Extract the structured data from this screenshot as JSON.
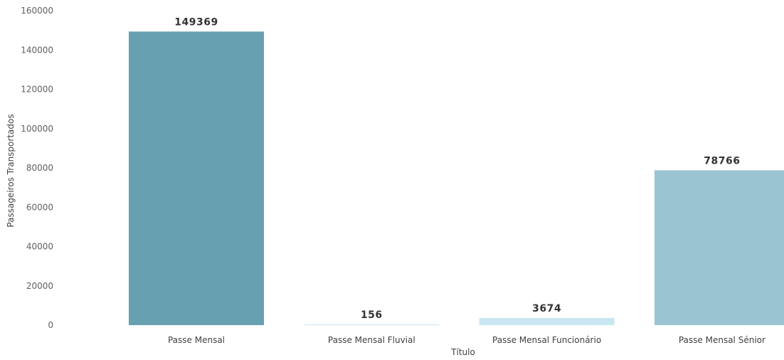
{
  "chart_data": {
    "type": "bar",
    "categories": [
      "Passe Mensal",
      "Passe Mensal Fluvial",
      "Passe Mensal Funcionário",
      "Passe Mensal Sénior"
    ],
    "values": [
      149369,
      156,
      3674,
      78766
    ],
    "data_labels": [
      "149369",
      "156",
      "3674",
      "78766"
    ],
    "bar_colors": [
      "#67a0b0",
      "#c9e7f2",
      "#c9e7f2",
      "#9bc4d2"
    ],
    "xlabel": "Título",
    "ylabel": "Passageiros Transportados",
    "ylim": [
      0,
      160000
    ],
    "yticks": [
      0,
      20000,
      40000,
      60000,
      80000,
      100000,
      120000,
      140000,
      160000
    ],
    "ytick_labels": [
      "0",
      "20000",
      "40000",
      "60000",
      "80000",
      "100000",
      "120000",
      "140000",
      "160000"
    ],
    "grid": false,
    "legend": "none"
  }
}
